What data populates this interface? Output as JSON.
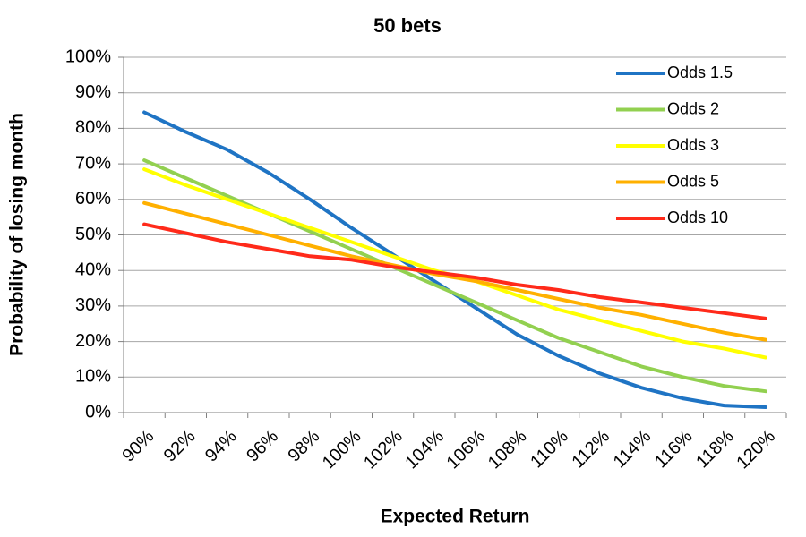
{
  "chart_data": {
    "type": "line",
    "title": "50 bets",
    "x_label": "Expected Return",
    "y_label": "Probability of losing month",
    "categories": [
      "90%",
      "92%",
      "94%",
      "96%",
      "98%",
      "100%",
      "102%",
      "104%",
      "106%",
      "108%",
      "110%",
      "112%",
      "114%",
      "116%",
      "118%",
      "120%"
    ],
    "series": [
      {
        "name": "Odds 1.5",
        "color": "#1f74c4",
        "values": [
          84.5,
          79,
          74,
          67.5,
          60,
          52,
          44.5,
          37,
          29.5,
          22,
          16,
          11,
          7,
          4,
          2,
          1.5
        ]
      },
      {
        "name": "Odds 2",
        "color": "#92d050",
        "values": [
          71,
          66,
          61,
          56,
          51,
          46,
          41,
          36,
          31,
          26,
          21,
          17,
          13,
          10,
          7.5,
          6
        ]
      },
      {
        "name": "Odds 3",
        "color": "#ffff00",
        "values": [
          68.5,
          64,
          60,
          56,
          52,
          48,
          44,
          40,
          37,
          33,
          29,
          26,
          23,
          20,
          18,
          15.5
        ]
      },
      {
        "name": "Odds 5",
        "color": "#ffb000",
        "values": [
          59,
          56,
          53,
          50,
          47,
          44,
          41.5,
          39,
          37,
          34.5,
          32,
          29.5,
          27.5,
          25,
          22.5,
          20.5
        ]
      },
      {
        "name": "Odds 10",
        "color": "#ff2a1a",
        "values": [
          53,
          50.5,
          48,
          46,
          44,
          43,
          41,
          39.5,
          38,
          36,
          34.5,
          32.5,
          31,
          29.5,
          28,
          26.5
        ]
      }
    ],
    "ylim": [
      0,
      100
    ],
    "yticks": [
      {
        "value": 0,
        "label": "0%"
      },
      {
        "value": 10,
        "label": "10%"
      },
      {
        "value": 20,
        "label": "20%"
      },
      {
        "value": 30,
        "label": "30%"
      },
      {
        "value": 40,
        "label": "40%"
      },
      {
        "value": 50,
        "label": "50%"
      },
      {
        "value": 60,
        "label": "60%"
      },
      {
        "value": 70,
        "label": "70%"
      },
      {
        "value": 80,
        "label": "80%"
      },
      {
        "value": 90,
        "label": "90%"
      },
      {
        "value": 100,
        "label": "100%"
      }
    ],
    "grid": true,
    "legend": "top-right"
  }
}
